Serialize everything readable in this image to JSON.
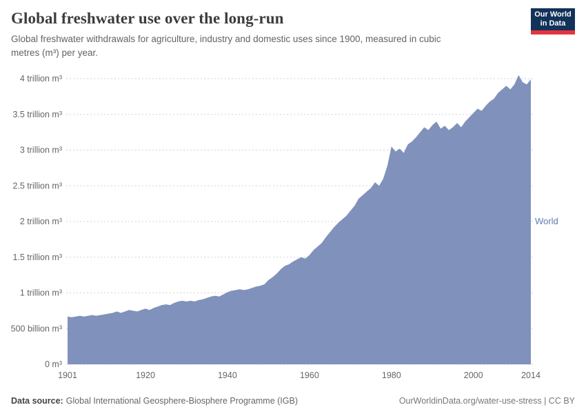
{
  "header": {
    "title": "Global freshwater use over the long-run",
    "subtitle": "Global freshwater withdrawals for agriculture, industry and domestic uses since 1900, measured in cubic metres (m³) per year."
  },
  "logo": {
    "line1": "Our World",
    "line2": "in Data",
    "bg": "#12325a",
    "accent": "#e5353f"
  },
  "footer": {
    "source_label": "Data source:",
    "source_value": "Global International Geosphere-Biosphere Programme (IGB)",
    "right_text": "OurWorldinData.org/water-use-stress | CC BY"
  },
  "chart_data": {
    "type": "area",
    "title": "Global freshwater use over the long-run",
    "xlabel": "",
    "ylabel": "",
    "unit": "trillion m³ per year",
    "xlim": [
      1901,
      2014
    ],
    "ylim": [
      0,
      4
    ],
    "x_step": 1,
    "grid": "horizontal dashed",
    "legend": "series label at right edge of plot",
    "xticks": [
      1901,
      1920,
      1940,
      1960,
      1980,
      2000,
      2014
    ],
    "yticks": [
      {
        "value": 0,
        "label": "0 m³"
      },
      {
        "value": 0.5,
        "label": "500 billion m³"
      },
      {
        "value": 1,
        "label": "1 trillion m³"
      },
      {
        "value": 1.5,
        "label": "1.5 trillion m³"
      },
      {
        "value": 2,
        "label": "2 trillion m³"
      },
      {
        "value": 2.5,
        "label": "2.5 trillion m³"
      },
      {
        "value": 3,
        "label": "3 trillion m³"
      },
      {
        "value": 3.5,
        "label": "3.5 trillion m³"
      },
      {
        "value": 4,
        "label": "4 trillion m³"
      }
    ],
    "series": [
      {
        "name": "World",
        "values": [
          0.67,
          0.66,
          0.67,
          0.68,
          0.67,
          0.68,
          0.69,
          0.68,
          0.69,
          0.7,
          0.71,
          0.72,
          0.74,
          0.72,
          0.74,
          0.76,
          0.75,
          0.74,
          0.76,
          0.78,
          0.76,
          0.79,
          0.81,
          0.83,
          0.84,
          0.83,
          0.86,
          0.88,
          0.89,
          0.88,
          0.89,
          0.88,
          0.9,
          0.91,
          0.93,
          0.95,
          0.96,
          0.95,
          0.98,
          1.01,
          1.03,
          1.04,
          1.05,
          1.04,
          1.05,
          1.07,
          1.09,
          1.1,
          1.12,
          1.18,
          1.22,
          1.27,
          1.33,
          1.38,
          1.4,
          1.44,
          1.47,
          1.5,
          1.48,
          1.53,
          1.6,
          1.65,
          1.7,
          1.78,
          1.85,
          1.92,
          1.98,
          2.03,
          2.08,
          2.15,
          2.22,
          2.32,
          2.37,
          2.42,
          2.47,
          2.55,
          2.5,
          2.6,
          2.78,
          3.05,
          2.98,
          3.02,
          2.96,
          3.08,
          3.12,
          3.18,
          3.25,
          3.32,
          3.28,
          3.35,
          3.4,
          3.3,
          3.34,
          3.28,
          3.32,
          3.38,
          3.32,
          3.4,
          3.46,
          3.52,
          3.58,
          3.55,
          3.62,
          3.68,
          3.72,
          3.8,
          3.85,
          3.9,
          3.85,
          3.92,
          4.05,
          3.95,
          3.92,
          3.99
        ]
      }
    ],
    "colors": {
      "area": "#8091bc",
      "world_label": "#5f7cb0",
      "grid": "#d2d2d2",
      "tick_text": "#666666"
    }
  }
}
